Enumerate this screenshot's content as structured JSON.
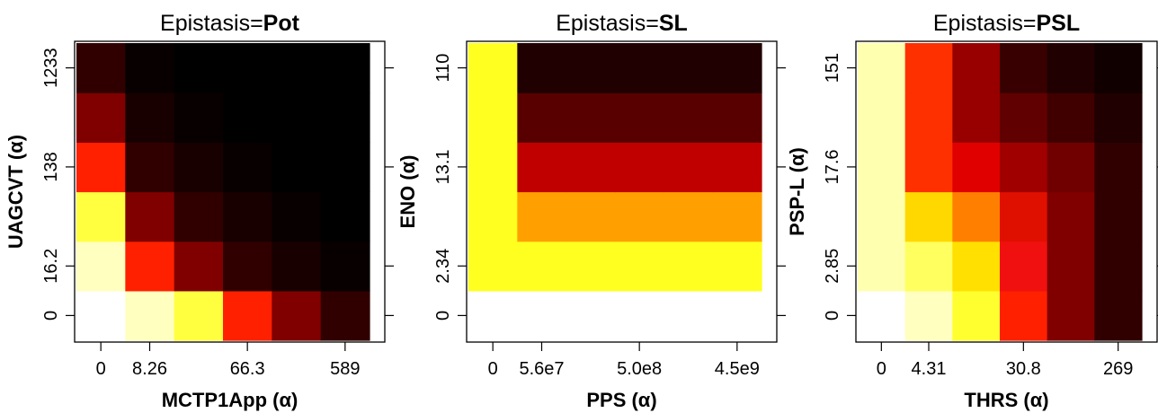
{
  "chart_data": [
    {
      "type": "heatmap",
      "title": "Epistasis=",
      "title_bold": "Pot",
      "xlabel": "MCTP1App (α)",
      "ylabel": "UAGCVT (α)",
      "x_tick_labels": [
        "0",
        "8.26",
        "66.3",
        "589"
      ],
      "y_tick_labels": [
        "0",
        "16.2",
        "138",
        "1233"
      ],
      "cells": [
        [
          "#ffffff",
          "#ffffc0",
          "#ffff40",
          "#ff2000",
          "#800000",
          "#300000"
        ],
        [
          "#ffffc0",
          "#ff2000",
          "#800000",
          "#300000",
          "#180000",
          "#080000"
        ],
        [
          "#ffff40",
          "#800000",
          "#300000",
          "#180000",
          "#080000",
          "#000000"
        ],
        [
          "#ff2000",
          "#300000",
          "#180000",
          "#080000",
          "#000000",
          "#000000"
        ],
        [
          "#800000",
          "#180000",
          "#080000",
          "#000000",
          "#000000",
          "#000000"
        ],
        [
          "#300000",
          "#080000",
          "#000000",
          "#000000",
          "#000000",
          "#000000"
        ]
      ],
      "grid": false
    },
    {
      "type": "heatmap",
      "title": "Epistasis=",
      "title_bold": "SL",
      "xlabel": "PPS (α)",
      "ylabel": "ENO (α)",
      "x_tick_labels": [
        "0",
        "5.6e7",
        "5.0e8",
        "4.5e9"
      ],
      "y_tick_labels": [
        "0",
        "2.34",
        "13.1",
        "110"
      ],
      "cells": [
        [
          "#ffffff",
          "#ffffff",
          "#ffffff",
          "#ffffff",
          "#ffffff",
          "#ffffff"
        ],
        [
          "#ffff20",
          "#ffff20",
          "#ffff20",
          "#ffff20",
          "#ffff20",
          "#ffff20"
        ],
        [
          "#ffff20",
          "#ffa000",
          "#ffa000",
          "#ffa000",
          "#ffa000",
          "#ffa000"
        ],
        [
          "#ffff20",
          "#c00000",
          "#c00000",
          "#c00000",
          "#c00000",
          "#c00000"
        ],
        [
          "#ffff20",
          "#580000",
          "#580000",
          "#580000",
          "#580000",
          "#580000"
        ],
        [
          "#ffff20",
          "#200000",
          "#200000",
          "#200000",
          "#200000",
          "#200000"
        ]
      ],
      "grid": false
    },
    {
      "type": "heatmap",
      "title": "Epistasis=",
      "title_bold": "PSL",
      "xlabel": "THRS (α)",
      "ylabel": "PSP-L (α)",
      "x_tick_labels": [
        "0",
        "4.31",
        "30.8",
        "269"
      ],
      "y_tick_labels": [
        "0",
        "2.85",
        "17.6",
        "151"
      ],
      "cells": [
        [
          "#ffffff",
          "#ffffc0",
          "#ffff30",
          "#ff2000",
          "#800000",
          "#300000"
        ],
        [
          "#ffffb0",
          "#ffff60",
          "#ffe000",
          "#f01010",
          "#800000",
          "#300000"
        ],
        [
          "#ffffb0",
          "#ffd800",
          "#ff8000",
          "#e01000",
          "#800000",
          "#300000"
        ],
        [
          "#ffffb0",
          "#ff3000",
          "#e00000",
          "#a00000",
          "#700000",
          "#300000"
        ],
        [
          "#ffffb0",
          "#ff3000",
          "#980000",
          "#600000",
          "#400000",
          "#200000"
        ],
        [
          "#ffffb0",
          "#ff3000",
          "#980000",
          "#380000",
          "#200000",
          "#100000"
        ]
      ],
      "grid": false
    }
  ]
}
